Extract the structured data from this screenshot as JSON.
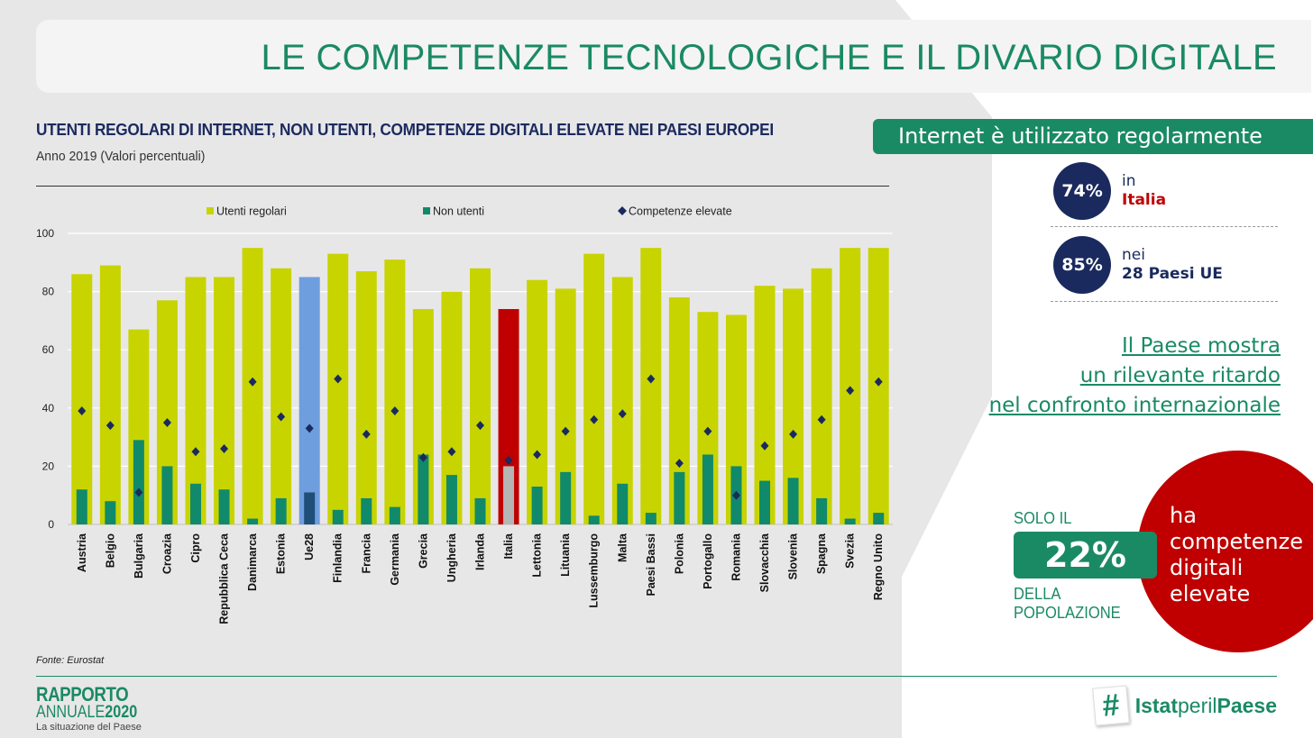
{
  "title": "LE COMPETENZE TECNOLOGICHE E IL DIVARIO DIGITALE",
  "chart_title": "UTENTI REGOLARI DI INTERNET, NON UTENTI, COMPETENZE DIGITALI ELEVATE NEI PAESI EUROPEI",
  "chart_subtitle": "Anno 2019 (Valori percentuali)",
  "source": "Fonte: Eurostat",
  "colors": {
    "green_brand": "#1a8a64",
    "navy": "#1a2a5e",
    "red": "#c00000",
    "bar_regular": "#c8d400",
    "bar_nonusers": "#108a6a",
    "ue28_regular": "#6e9edd",
    "ue28_nonusers": "#1f4e79",
    "italia_regular": "#c00000",
    "italia_nonusers": "#b5b5b5",
    "marker": "#1a2a5e"
  },
  "chart_data": {
    "type": "bar",
    "categories": [
      "Austria",
      "Belgio",
      "Bulgaria",
      "Croazia",
      "Cipro",
      "Repubblica Ceca",
      "Danimarca",
      "Estonia",
      "Ue28",
      "Finlandia",
      "Francia",
      "Germania",
      "Grecia",
      "Ungheria",
      "Irlanda",
      "Italia",
      "Lettonia",
      "Lituania",
      "Lussemburgo",
      "Malta",
      "Paesi Bassi",
      "Polonia",
      "Portogallo",
      "Romania",
      "Slovacchia",
      "Slovenia",
      "Spagna",
      "Svezia",
      "Regno Unito"
    ],
    "series": [
      {
        "name": "Utenti regolari",
        "kind": "bar",
        "values": [
          86,
          89,
          67,
          77,
          85,
          85,
          95,
          88,
          85,
          93,
          87,
          91,
          74,
          80,
          88,
          74,
          84,
          81,
          93,
          85,
          95,
          78,
          73,
          72,
          82,
          81,
          88,
          95,
          95
        ]
      },
      {
        "name": "Non utenti",
        "kind": "bar",
        "values": [
          12,
          8,
          29,
          20,
          14,
          12,
          2,
          9,
          11,
          5,
          9,
          6,
          24,
          17,
          9,
          20,
          13,
          18,
          3,
          14,
          4,
          18,
          24,
          20,
          15,
          16,
          9,
          2,
          4
        ]
      },
      {
        "name": "Competenze elevate",
        "kind": "marker",
        "values": [
          39,
          34,
          11,
          35,
          25,
          26,
          49,
          37,
          33,
          50,
          31,
          39,
          23,
          25,
          34,
          22,
          24,
          32,
          36,
          38,
          50,
          21,
          32,
          10,
          27,
          31,
          36,
          46,
          49
        ]
      }
    ],
    "highlight": {
      "Ue28": "ue28",
      "Italia": "italia"
    },
    "ylim": [
      0,
      100
    ],
    "yticks": [
      0,
      20,
      40,
      60,
      80,
      100
    ],
    "grid": true,
    "legend_position": "top"
  },
  "sidebar": {
    "banner": "Internet è utilizzato regolarmente",
    "stat1": {
      "value": "74%",
      "line1": "in",
      "line2": "Italia"
    },
    "stat2": {
      "value": "85%",
      "line1": "nei",
      "line2": "28 Paesi UE"
    },
    "ritardo": [
      "Il Paese mostra",
      "un rilevante ritardo",
      "nel confronto internazionale"
    ],
    "solo_il": "SOLO IL",
    "pct": "22%",
    "della": "DELLA",
    "popolazione": "POPOLAZIONE",
    "red_text": [
      "ha",
      "competenze",
      "digitali",
      "elevate"
    ]
  },
  "footer": {
    "logo_line1": "RAPPORTO",
    "logo_line2a": "ANNUALE",
    "logo_line2b": "2020",
    "logo_line3": "La situazione del Paese",
    "hash_symbol": "#",
    "hash_a": "Istat",
    "hash_b": "peril",
    "hash_c": "Paese"
  }
}
